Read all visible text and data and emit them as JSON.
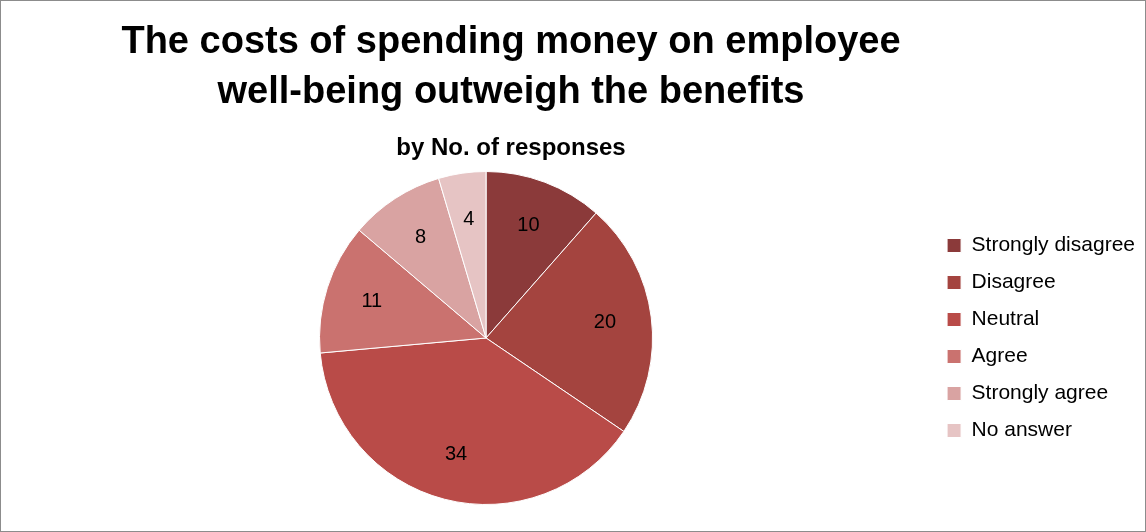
{
  "chart_data": {
    "type": "pie",
    "title": "The costs of spending money on employee well-being outweigh the benefits",
    "subtitle": "by No. of responses",
    "categories": [
      "Strongly disagree",
      "Disagree",
      "Neutral",
      "Agree",
      "Strongly agree",
      "No answer"
    ],
    "values": [
      10,
      20,
      34,
      11,
      8,
      4
    ],
    "colors": [
      "#8b3a3a",
      "#a4443f",
      "#b94b48",
      "#ca726f",
      "#d9a3a2",
      "#e6c4c4"
    ],
    "data_labels": true,
    "legend": "right"
  }
}
